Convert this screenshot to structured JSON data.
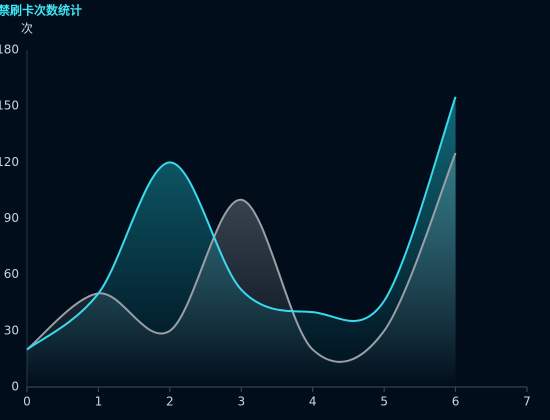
{
  "chart_data": {
    "type": "line",
    "title": "禁刷卡次数统计",
    "y_label": "次",
    "x": [
      0,
      1,
      2,
      3,
      4,
      5,
      6
    ],
    "series": [
      {
        "color": "#9a9fa6",
        "values": [
          20,
          50,
          30,
          100,
          20,
          30,
          125
        ]
      },
      {
        "color": "#3ad9ee",
        "values": [
          20,
          50,
          120,
          52,
          40,
          46,
          155
        ]
      }
    ],
    "xlim": [
      0,
      7
    ],
    "xticks": [
      0,
      1,
      2,
      3,
      4,
      5,
      6,
      7
    ],
    "ylim": [
      0,
      180
    ],
    "yticks": [
      0,
      30,
      60,
      90,
      120,
      150,
      180
    ],
    "area": true,
    "smooth": true
  }
}
